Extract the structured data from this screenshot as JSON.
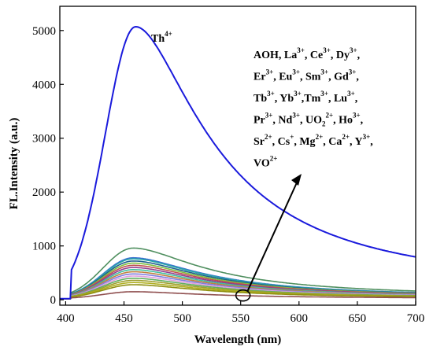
{
  "chart_data": {
    "type": "line",
    "xlabel": "Wavelength (nm)",
    "ylabel": "FL.Intensity (a.u.)",
    "xlim": [
      395,
      700
    ],
    "ylim": [
      -100,
      5450
    ],
    "x_ticks": [
      "400",
      "450",
      "500",
      "550",
      "600",
      "650",
      "700"
    ],
    "y_ticks": [
      "0",
      "1000",
      "2000",
      "3000",
      "4000",
      "5000"
    ],
    "grid": false,
    "series": [
      {
        "name": "Th4+",
        "peak_x": 460,
        "peak_y": 5050,
        "color": "#1a1adc"
      },
      {
        "name": "",
        "peak_x": 458,
        "peak_y": 940,
        "color": "#4f8f5f"
      },
      {
        "name": "",
        "peak_x": 458,
        "peak_y": 760,
        "color": "#3a6fd0"
      },
      {
        "name": "",
        "peak_x": 458,
        "peak_y": 740,
        "color": "#2aa8a8"
      },
      {
        "name": "",
        "peak_x": 458,
        "peak_y": 700,
        "color": "#1f5f8f"
      },
      {
        "name": "",
        "peak_x": 458,
        "peak_y": 660,
        "color": "#7fbf3f"
      },
      {
        "name": "",
        "peak_x": 458,
        "peak_y": 620,
        "color": "#c05050"
      },
      {
        "name": "",
        "peak_x": 458,
        "peak_y": 580,
        "color": "#8f3f8f"
      },
      {
        "name": "",
        "peak_x": 458,
        "peak_y": 540,
        "color": "#3fbf9f"
      },
      {
        "name": "",
        "peak_x": 458,
        "peak_y": 500,
        "color": "#bf7f3f"
      },
      {
        "name": "",
        "peak_x": 458,
        "peak_y": 460,
        "color": "#7f7fdf"
      },
      {
        "name": "",
        "peak_x": 458,
        "peak_y": 420,
        "color": "#df9fdf"
      },
      {
        "name": "",
        "peak_x": 458,
        "peak_y": 380,
        "color": "#5faf5f"
      },
      {
        "name": "",
        "peak_x": 458,
        "peak_y": 340,
        "color": "#9f9f2f"
      },
      {
        "name": "",
        "peak_x": 458,
        "peak_y": 300,
        "color": "#afaf1f"
      },
      {
        "name": "",
        "peak_x": 458,
        "peak_y": 260,
        "color": "#8f8f10"
      },
      {
        "name": "",
        "peak_x": 458,
        "peak_y": 130,
        "color": "#8f4f4f"
      }
    ],
    "annotation": {
      "label": "Th",
      "label_sup": "4+",
      "ions_lines": [
        [
          [
            "AOH, La",
            ""
          ],
          [
            "3+",
            "sup"
          ],
          [
            ", Ce",
            ""
          ],
          [
            "3+",
            "sup"
          ],
          [
            ", Dy",
            ""
          ],
          [
            "3+",
            "sup"
          ],
          [
            ",",
            ""
          ]
        ],
        [
          [
            "Er",
            ""
          ],
          [
            "3+",
            "sup"
          ],
          [
            ", Eu",
            ""
          ],
          [
            "3+",
            "sup"
          ],
          [
            ", Sm",
            ""
          ],
          [
            "3+",
            "sup"
          ],
          [
            ", Gd",
            ""
          ],
          [
            "3+",
            "sup"
          ],
          [
            ",",
            ""
          ]
        ],
        [
          [
            "Tb",
            ""
          ],
          [
            "3+",
            "sup"
          ],
          [
            ", Yb",
            ""
          ],
          [
            "3+",
            "sup"
          ],
          [
            ",Tm",
            ""
          ],
          [
            "3+",
            "sup"
          ],
          [
            ", Lu",
            ""
          ],
          [
            "3+",
            "sup"
          ],
          [
            ",",
            ""
          ]
        ],
        [
          [
            "Pr",
            ""
          ],
          [
            "3+",
            "sup"
          ],
          [
            ", Nd",
            ""
          ],
          [
            "3+",
            "sup"
          ],
          [
            ", UO",
            ""
          ],
          [
            "2",
            "sub"
          ],
          [
            "2+",
            "sup"
          ],
          [
            ", Ho",
            ""
          ],
          [
            "3+",
            "sup"
          ],
          [
            ",",
            ""
          ]
        ],
        [
          [
            "Sr",
            ""
          ],
          [
            "2+",
            "sup"
          ],
          [
            ", Cs",
            ""
          ],
          [
            "+",
            "sup"
          ],
          [
            ", Mg",
            ""
          ],
          [
            "2+",
            "sup"
          ],
          [
            ", Ca",
            ""
          ],
          [
            "2+",
            "sup"
          ],
          [
            ", Y",
            ""
          ],
          [
            "3+",
            "sup"
          ],
          [
            ",",
            ""
          ]
        ],
        [
          [
            "VO",
            ""
          ],
          [
            "2+",
            "sup"
          ]
        ]
      ]
    }
  }
}
